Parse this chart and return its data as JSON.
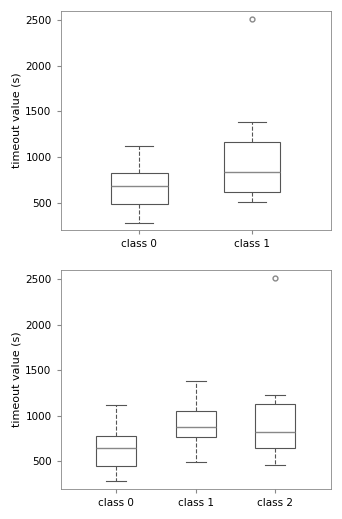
{
  "top_plot": {
    "ylabel": "timeout value (s)",
    "ylim": [
      200,
      2600
    ],
    "yticks": [
      500,
      1000,
      1500,
      2000,
      2500
    ],
    "classes": [
      "class 0",
      "class 1"
    ],
    "boxes": [
      {
        "label": "class 0",
        "whislo": 275,
        "q1": 490,
        "med": 680,
        "q3": 820,
        "whishi": 1120,
        "fliers": []
      },
      {
        "label": "class 1",
        "whislo": 510,
        "q1": 615,
        "med": 840,
        "q3": 1170,
        "whishi": 1380,
        "fliers": [
          2510
        ]
      }
    ]
  },
  "bottom_plot": {
    "ylabel": "timeout value (s)",
    "ylim": [
      200,
      2600
    ],
    "yticks": [
      500,
      1000,
      1500,
      2000,
      2500
    ],
    "classes": [
      "class 0",
      "class 1",
      "class 2"
    ],
    "boxes": [
      {
        "label": "class 0",
        "whislo": 290,
        "q1": 450,
        "med": 645,
        "q3": 780,
        "whishi": 1120,
        "fliers": []
      },
      {
        "label": "class 1",
        "whislo": 490,
        "q1": 770,
        "med": 875,
        "q3": 1055,
        "whishi": 1380,
        "fliers": []
      },
      {
        "label": "class 2",
        "whislo": 460,
        "q1": 645,
        "med": 825,
        "q3": 1135,
        "whishi": 1230,
        "fliers": [
          2510
        ]
      }
    ]
  },
  "background_color": "#ffffff",
  "box_facecolor": "white",
  "box_edgecolor": "#555555",
  "median_color": "#888888",
  "whisker_color": "#555555",
  "flier_color": "#888888",
  "spine_color": "#888888",
  "fontsize": 8,
  "tick_fontsize": 7.5,
  "ylabel_fontsize": 8
}
